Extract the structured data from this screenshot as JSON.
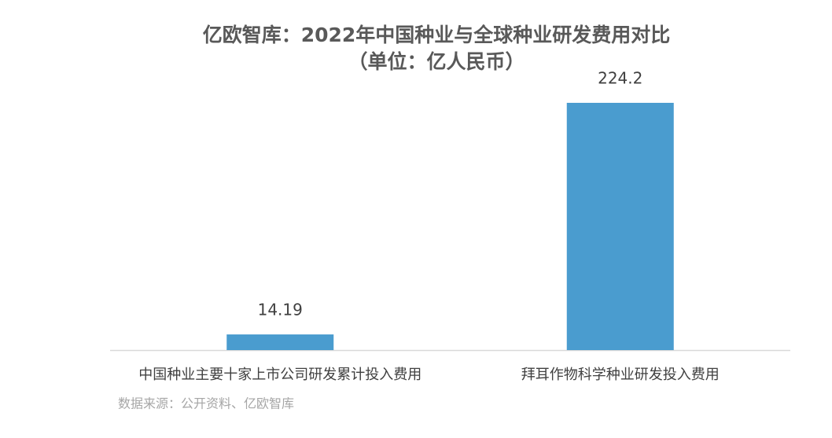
{
  "chart_data": {
    "type": "bar",
    "title": "亿欧智库：2022年中国种业与全球种业研发费用对比",
    "subtitle": "（单位：亿人民币）",
    "categories": [
      "中国种业主要十家上市公司研发累计投入费用",
      "拜耳作物科学种业研发投入费用"
    ],
    "values": [
      14.19,
      224.2
    ],
    "color": "#4a9ccf",
    "source": "数据来源：公开资料、亿欧智库"
  }
}
